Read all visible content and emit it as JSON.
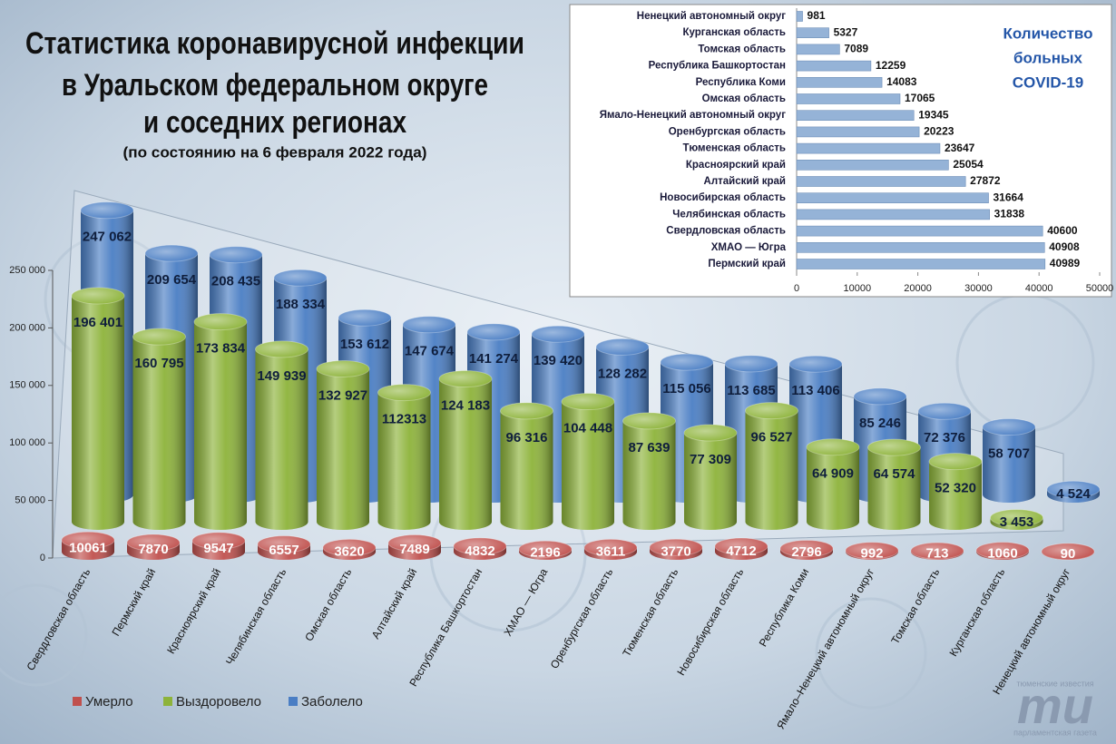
{
  "chart_data": [
    {
      "type": "bar",
      "bar_style": "cylinder",
      "title": [
        "Статистика коронавирусной инфекции",
        "в Уральском федеральном округе",
        "и соседних регионах"
      ],
      "subtitle": "(по состоянию на 6 февраля 2022 года)",
      "categories": [
        "Свердловская область",
        "Пермский край",
        "Красноярский край",
        "Челябинская область",
        "Омская область",
        "Алтайский край",
        "Республика Башкортостан",
        "ХМАО — Югра",
        "Оренбургская область",
        "Тюменская область",
        "Новосибирская область",
        "Республика Коми",
        "Ямало–Ненецкий автономный округ",
        "Томская область",
        "Курганская область",
        "Ненецкий автономный округ"
      ],
      "series": [
        {
          "name": "Умерло",
          "color": "#c0504d",
          "values": [
            10061,
            7870,
            9547,
            6557,
            3620,
            7489,
            4832,
            2196,
            3611,
            3770,
            4712,
            2796,
            992,
            713,
            1060,
            90
          ]
        },
        {
          "name": "Выздоровело",
          "color": "#8db33a",
          "values": [
            196401,
            160795,
            173834,
            149939,
            132927,
            112313,
            124183,
            96316,
            104448,
            87639,
            77309,
            96527,
            64909,
            64574,
            52320,
            3453
          ],
          "value_labels": [
            "196 401",
            "160 795",
            "173 834",
            "149 939",
            "132 927",
            "112313",
            "124 183",
            "96 316",
            "104 448",
            "87 639",
            "77 309",
            "96 527",
            "64 909",
            "64 574",
            "52 320",
            "3 453"
          ]
        },
        {
          "name": "Заболело",
          "color": "#4a7ec4",
          "values": [
            247062,
            209654,
            208435,
            188334,
            153612,
            147674,
            141274,
            139420,
            128282,
            115056,
            113685,
            113406,
            85246,
            72376,
            58707,
            4524
          ],
          "value_labels": [
            "247 062",
            "209 654",
            "208 435",
            "188 334",
            "153 612",
            "147 674",
            "141 274",
            "139 420",
            "128 282",
            "115 056",
            "113 685",
            "113 406",
            "85 246",
            "72 376",
            "58 707",
            "4 524"
          ]
        }
      ],
      "ylim": [
        0,
        250000
      ],
      "yticks": [
        {
          "value": 0,
          "label": "0"
        },
        {
          "value": 50000,
          "label": "50 000"
        },
        {
          "value": 100000,
          "label": "100 000"
        },
        {
          "value": 150000,
          "label": "150 000"
        },
        {
          "value": 200000,
          "label": "200 000"
        },
        {
          "value": 250000,
          "label": "250 000"
        }
      ],
      "legend": "bottom-left"
    },
    {
      "type": "bar",
      "orientation": "horizontal",
      "title": [
        "Количество",
        "больных",
        "COVID-19"
      ],
      "categories": [
        "Ненецкий автономный округ",
        "Курганская область",
        "Томская область",
        "Республика Башкортостан",
        "Республика Коми",
        "Омская область",
        "Ямало-Ненецкий автономный округ",
        "Оренбургская область",
        "Тюменская область",
        "Красноярский край",
        "Алтайский край",
        "Новосибирская область",
        "Челябинская область",
        "Свердловская область",
        "ХМАО — Югра",
        "Пермский край"
      ],
      "values": [
        981,
        5327,
        7089,
        12259,
        14083,
        17065,
        19345,
        20223,
        23647,
        25054,
        27872,
        31664,
        31838,
        40600,
        40908,
        40989
      ],
      "color": "#95b3d7",
      "xlim": [
        0,
        50000
      ],
      "xticks": [
        0,
        10000,
        20000,
        30000,
        40000,
        50000
      ]
    }
  ],
  "logo": {
    "top": "тюменские известия",
    "mark": "ти",
    "bottom": "парламентская газета"
  }
}
